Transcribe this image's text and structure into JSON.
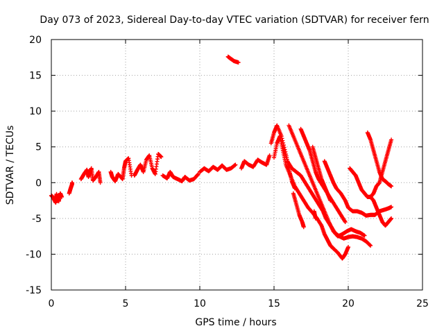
{
  "chart_data": {
    "type": "scatter",
    "title": "Day 073 of 2023, Sidereal Day-to-day VTEC variation (SDTVAR) for receiver fern",
    "xlabel": "GPS time / hours",
    "ylabel": "SDTVAR / TECUs",
    "xlim": [
      0,
      25
    ],
    "ylim": [
      -15,
      20
    ],
    "xticks": [
      0,
      5,
      10,
      15,
      20,
      25
    ],
    "yticks": [
      -15,
      -10,
      -5,
      0,
      5,
      10,
      15,
      20
    ],
    "grid": true,
    "marker": "+",
    "marker_color": "#ff0000",
    "series": [
      {
        "points": [
          [
            0.0,
            -1.8
          ],
          [
            0.1,
            -2.0
          ],
          [
            0.2,
            -2.4
          ],
          [
            0.3,
            -2.8
          ],
          [
            0.35,
            -1.6
          ],
          [
            0.4,
            -2.2
          ],
          [
            0.5,
            -2.6
          ],
          [
            0.6,
            -1.5
          ],
          [
            0.7,
            -2.0
          ]
        ]
      },
      {
        "points": [
          [
            1.2,
            -1.5
          ],
          [
            1.3,
            -0.8
          ],
          [
            1.4,
            -0.2
          ],
          [
            1.4,
            0.0
          ]
        ]
      },
      {
        "points": [
          [
            2.0,
            0.5
          ],
          [
            2.2,
            1.2
          ],
          [
            2.4,
            1.8
          ],
          [
            2.5,
            0.8
          ],
          [
            2.6,
            1.5
          ],
          [
            2.7,
            2.0
          ],
          [
            2.8,
            0.3
          ],
          [
            3.0,
            0.8
          ],
          [
            3.2,
            1.5
          ],
          [
            3.3,
            0.0
          ]
        ]
      },
      {
        "points": [
          [
            4.0,
            1.5
          ],
          [
            4.1,
            0.8
          ],
          [
            4.3,
            0.2
          ],
          [
            4.5,
            1.2
          ],
          [
            4.8,
            0.5
          ],
          [
            4.9,
            2.0
          ],
          [
            5.0,
            3.0
          ],
          [
            5.2,
            3.4
          ],
          [
            5.4,
            1.0
          ]
        ]
      },
      {
        "points": [
          [
            5.6,
            1.0
          ],
          [
            5.8,
            1.8
          ],
          [
            6.0,
            2.5
          ],
          [
            6.2,
            1.5
          ],
          [
            6.4,
            3.2
          ],
          [
            6.6,
            3.8
          ],
          [
            6.8,
            2.0
          ],
          [
            7.0,
            1.2
          ],
          [
            7.2,
            4.0
          ],
          [
            7.4,
            3.6
          ]
        ]
      },
      {
        "points": [
          [
            7.5,
            1.0
          ],
          [
            7.8,
            0.6
          ],
          [
            8.0,
            1.5
          ],
          [
            8.2,
            0.8
          ],
          [
            8.5,
            0.5
          ],
          [
            8.8,
            0.2
          ],
          [
            9.0,
            0.8
          ],
          [
            9.3,
            0.3
          ],
          [
            9.6,
            0.5
          ],
          [
            9.9,
            1.2
          ]
        ]
      },
      {
        "points": [
          [
            10.0,
            1.5
          ],
          [
            10.3,
            2.0
          ],
          [
            10.6,
            1.6
          ],
          [
            10.9,
            2.2
          ],
          [
            11.2,
            1.8
          ],
          [
            11.5,
            2.4
          ],
          [
            11.8,
            1.8
          ],
          [
            12.1,
            2.0
          ],
          [
            12.4,
            2.5
          ]
        ]
      },
      {
        "points": [
          [
            11.9,
            17.6
          ],
          [
            12.1,
            17.3
          ],
          [
            12.3,
            17.0
          ],
          [
            12.6,
            16.8
          ]
        ]
      },
      {
        "points": [
          [
            12.8,
            2.0
          ],
          [
            13.0,
            3.0
          ],
          [
            13.3,
            2.5
          ],
          [
            13.6,
            2.2
          ],
          [
            13.9,
            3.2
          ],
          [
            14.2,
            2.8
          ],
          [
            14.5,
            2.5
          ],
          [
            14.7,
            3.8
          ]
        ]
      },
      {
        "points": [
          [
            14.8,
            5.5
          ],
          [
            15.0,
            7.0
          ],
          [
            15.2,
            8.0
          ],
          [
            15.5,
            6.5
          ],
          [
            15.8,
            4.0
          ],
          [
            16.0,
            2.0
          ],
          [
            16.2,
            0.2
          ],
          [
            16.4,
            -0.8
          ]
        ]
      },
      {
        "points": [
          [
            15.0,
            3.5
          ],
          [
            15.2,
            5.5
          ],
          [
            15.4,
            6.5
          ],
          [
            15.6,
            4.5
          ],
          [
            15.8,
            2.5
          ],
          [
            16.1,
            1.0
          ],
          [
            16.4,
            -0.5
          ],
          [
            16.7,
            -1.5
          ],
          [
            17.0,
            -2.5
          ],
          [
            17.3,
            -3.5
          ],
          [
            17.6,
            -4.2
          ],
          [
            17.9,
            -5.0
          ],
          [
            18.2,
            -6.0
          ],
          [
            18.4,
            -7.2
          ],
          [
            18.6,
            -8.0
          ],
          [
            18.8,
            -8.8
          ],
          [
            19.0,
            -9.2
          ],
          [
            19.3,
            -9.8
          ],
          [
            19.6,
            -10.6
          ],
          [
            19.8,
            -10.0
          ],
          [
            20.0,
            -9.0
          ]
        ]
      },
      {
        "points": [
          [
            15.6,
            5.0
          ],
          [
            15.9,
            3.0
          ],
          [
            16.2,
            2.0
          ],
          [
            16.5,
            1.5
          ],
          [
            16.8,
            1.0
          ],
          [
            17.1,
            0.0
          ],
          [
            17.4,
            -1.0
          ],
          [
            17.7,
            -2.0
          ],
          [
            18.0,
            -3.0
          ],
          [
            18.3,
            -4.0
          ],
          [
            18.5,
            -5.0
          ],
          [
            18.8,
            -6.0
          ],
          [
            19.1,
            -7.0
          ],
          [
            19.4,
            -7.5
          ],
          [
            19.7,
            -7.8
          ],
          [
            20.0,
            -7.6
          ],
          [
            20.3,
            -7.5
          ],
          [
            20.6,
            -7.6
          ],
          [
            20.9,
            -7.8
          ],
          [
            21.2,
            -8.2
          ],
          [
            21.5,
            -8.8
          ]
        ]
      },
      {
        "points": [
          [
            16.0,
            8.0
          ],
          [
            16.3,
            6.5
          ],
          [
            16.6,
            5.0
          ],
          [
            16.9,
            3.5
          ],
          [
            17.2,
            2.0
          ],
          [
            17.5,
            0.5
          ],
          [
            17.8,
            -1.0
          ],
          [
            18.1,
            -2.5
          ],
          [
            18.4,
            -4.0
          ],
          [
            18.7,
            -5.5
          ],
          [
            19.0,
            -6.8
          ],
          [
            19.3,
            -7.5
          ],
          [
            19.6,
            -7.2
          ],
          [
            19.9,
            -6.8
          ],
          [
            20.2,
            -6.5
          ],
          [
            20.5,
            -6.8
          ],
          [
            20.8,
            -7.0
          ],
          [
            21.1,
            -7.4
          ]
        ]
      },
      {
        "points": [
          [
            16.8,
            7.5
          ],
          [
            17.0,
            6.5
          ],
          [
            17.2,
            5.5
          ],
          [
            17.4,
            4.5
          ],
          [
            17.6,
            3.0
          ],
          [
            17.8,
            1.5
          ],
          [
            18.0,
            0.5
          ],
          [
            18.3,
            -0.5
          ],
          [
            18.6,
            -1.5
          ],
          [
            18.9,
            -2.5
          ],
          [
            19.2,
            -3.5
          ],
          [
            19.5,
            -4.5
          ],
          [
            19.8,
            -5.5
          ]
        ]
      },
      {
        "points": [
          [
            16.3,
            -1.5
          ],
          [
            16.5,
            -3.0
          ],
          [
            16.7,
            -4.5
          ],
          [
            16.9,
            -5.5
          ],
          [
            17.0,
            -6.2
          ]
        ]
      },
      {
        "points": [
          [
            17.7,
            -4.0
          ],
          [
            17.8,
            -5.0
          ]
        ]
      },
      {
        "points": [
          [
            17.6,
            5.0
          ],
          [
            17.8,
            3.5
          ],
          [
            18.0,
            2.0
          ],
          [
            18.2,
            0.5
          ],
          [
            18.4,
            -0.5
          ],
          [
            18.6,
            -1.5
          ],
          [
            18.8,
            -2.5
          ]
        ]
      },
      {
        "points": [
          [
            18.4,
            3.0
          ],
          [
            18.6,
            2.0
          ],
          [
            18.8,
            1.0
          ],
          [
            19.0,
            0.0
          ],
          [
            19.2,
            -0.8
          ],
          [
            19.5,
            -1.5
          ],
          [
            19.8,
            -2.5
          ],
          [
            20.0,
            -3.5
          ],
          [
            20.3,
            -4.0
          ],
          [
            20.6,
            -4.0
          ],
          [
            20.9,
            -4.2
          ],
          [
            21.2,
            -4.6
          ],
          [
            21.5,
            -4.5
          ],
          [
            21.8,
            -4.5
          ],
          [
            22.1,
            -4.0
          ],
          [
            22.4,
            -3.8
          ],
          [
            22.7,
            -3.6
          ],
          [
            22.9,
            -3.4
          ]
        ]
      },
      {
        "points": [
          [
            20.1,
            2.0
          ],
          [
            20.3,
            1.5
          ],
          [
            20.5,
            1.0
          ],
          [
            20.7,
            0.0
          ],
          [
            20.9,
            -1.0
          ],
          [
            21.1,
            -1.5
          ],
          [
            21.3,
            -2.0
          ],
          [
            21.5,
            -2.0
          ],
          [
            21.7,
            -1.5
          ],
          [
            21.9,
            -0.5
          ],
          [
            22.1,
            0.0
          ],
          [
            22.3,
            1.5
          ],
          [
            22.5,
            3.0
          ],
          [
            22.7,
            4.5
          ],
          [
            22.9,
            6.0
          ]
        ]
      },
      {
        "points": [
          [
            21.3,
            7.0
          ],
          [
            21.5,
            6.0
          ],
          [
            21.7,
            4.5
          ],
          [
            21.9,
            3.0
          ],
          [
            22.1,
            1.5
          ],
          [
            22.3,
            0.5
          ],
          [
            22.5,
            0.2
          ],
          [
            22.7,
            -0.2
          ],
          [
            22.9,
            -0.5
          ]
        ]
      },
      {
        "points": [
          [
            21.5,
            -2.0
          ],
          [
            21.7,
            -2.5
          ],
          [
            21.9,
            -3.5
          ],
          [
            22.1,
            -4.5
          ],
          [
            22.3,
            -5.5
          ],
          [
            22.5,
            -6.0
          ],
          [
            22.7,
            -5.5
          ],
          [
            22.9,
            -5.0
          ]
        ]
      }
    ]
  }
}
